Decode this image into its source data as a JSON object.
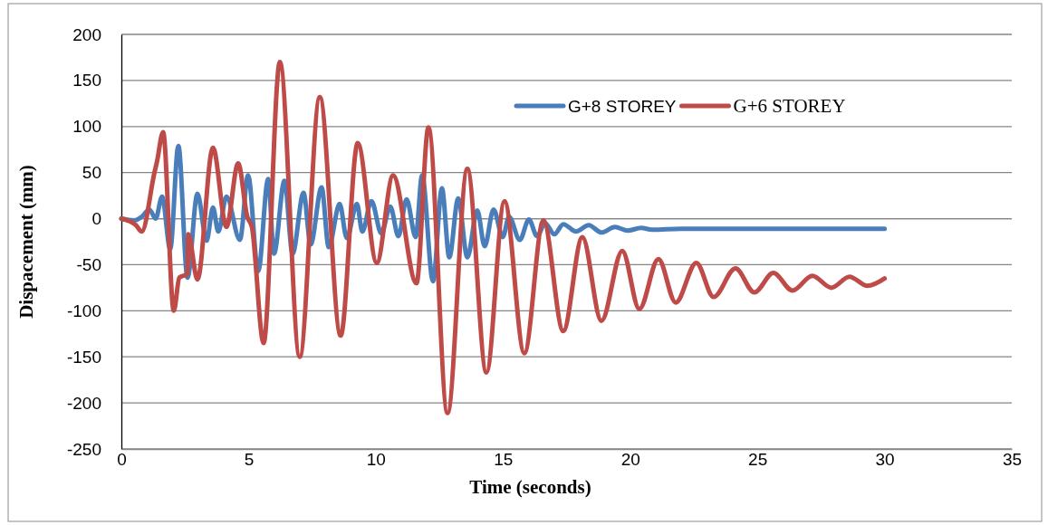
{
  "chart_data": {
    "type": "line",
    "xlabel": "Time (seconds)",
    "ylabel": "Dispacement (mm)",
    "xlim": [
      0,
      35
    ],
    "xticks": [
      0,
      5,
      10,
      15,
      20,
      25,
      30,
      35
    ],
    "ylim": [
      -250,
      200
    ],
    "yticks": [
      -250,
      -200,
      -150,
      -100,
      -50,
      0,
      50,
      100,
      150,
      200
    ],
    "grid": "y",
    "legend": "top right",
    "line_style": "solid",
    "marker": "none",
    "series": [
      {
        "name": "G+8 STOREY",
        "color": "#4a7ebb",
        "x": [
          0,
          0.5,
          0.8,
          1.1,
          1.35,
          1.6,
          1.92,
          2.24,
          2.6,
          2.99,
          3.35,
          3.6,
          3.81,
          4.13,
          4.66,
          4.98,
          5.38,
          5.77,
          6.0,
          6.41,
          6.73,
          7.16,
          7.44,
          7.87,
          8.15,
          8.58,
          8.86,
          9.26,
          9.47,
          9.83,
          10.22,
          10.57,
          10.89,
          11.21,
          11.57,
          11.82,
          12.25,
          12.6,
          12.89,
          13.24,
          13.6,
          13.99,
          14.28,
          14.63,
          14.99,
          15.24,
          15.66,
          16.02,
          16.34,
          16.66,
          17.02,
          17.37,
          17.87,
          18.37,
          18.87,
          19.4,
          19.9,
          20.43,
          20.86,
          22,
          25,
          30
        ],
        "values": [
          0,
          -2,
          2,
          10,
          0,
          24,
          -33,
          79,
          -64,
          27,
          -24,
          12,
          -14,
          24,
          -23,
          47,
          -57,
          43,
          -38,
          41,
          -38,
          28,
          -28,
          34,
          -31,
          16,
          -21,
          16,
          -14,
          19,
          -16,
          13,
          -19,
          21,
          -20,
          47,
          -68,
          33,
          -42,
          22,
          -42,
          9,
          -30,
          10,
          -20,
          2,
          -23,
          -1,
          -19,
          -5,
          -17,
          -6,
          -14,
          -7,
          -15,
          -9,
          -13,
          -10,
          -12,
          -11,
          -11,
          -11
        ]
      },
      {
        "name": "G+6 STOREY",
        "color": "#be4b48",
        "x": [
          0,
          0.57,
          0.8,
          1.3,
          1.4,
          1.64,
          2.06,
          2.28,
          2.6,
          2.63,
          2.99,
          3.6,
          4.13,
          4.59,
          4.95,
          5.13,
          5.59,
          6.23,
          7.01,
          7.8,
          8.62,
          9.29,
          10.04,
          10.68,
          11.6,
          12.07,
          12.82,
          13.6,
          14.35,
          15.06,
          15.84,
          16.59,
          17.37,
          18.12,
          18.87,
          19.69,
          20.36,
          21.11,
          21.79,
          22.6,
          23.28,
          24.14,
          24.88,
          25.63,
          26.38,
          27.16,
          27.91,
          28.62,
          29.33,
          30
        ],
        "values": [
          0,
          -7,
          -14,
          50,
          62,
          94,
          -100,
          -64,
          -60,
          -17,
          -66,
          77,
          -9,
          60,
          2,
          -9,
          -135,
          170,
          -150,
          132,
          -127,
          82,
          -48,
          47,
          -70,
          99,
          -211,
          54,
          -167,
          19,
          -146,
          -2,
          -122,
          -20,
          -111,
          -35,
          -98,
          -44,
          -91,
          -48,
          -85,
          -54,
          -80,
          -59,
          -78,
          -62,
          -75,
          -63,
          -73,
          -65
        ]
      }
    ]
  }
}
